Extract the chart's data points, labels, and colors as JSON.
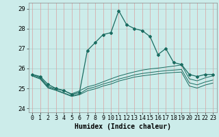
{
  "xlabel": "Humidex (Indice chaleur)",
  "background_color": "#ccecea",
  "grid_color_v": "#d9a0a0",
  "grid_color_h": "#aaccca",
  "line_color": "#1a6b60",
  "xlim": [
    -0.5,
    23.5
  ],
  "ylim": [
    23.8,
    29.3
  ],
  "yticks": [
    24,
    25,
    26,
    27,
    28,
    29
  ],
  "xticks": [
    0,
    1,
    2,
    3,
    4,
    5,
    6,
    7,
    8,
    9,
    10,
    11,
    12,
    13,
    14,
    15,
    16,
    17,
    18,
    19,
    20,
    21,
    22,
    23
  ],
  "series_main": [
    25.7,
    25.6,
    25.2,
    25.0,
    24.9,
    24.7,
    24.8,
    26.9,
    27.3,
    27.7,
    27.8,
    28.9,
    28.2,
    28.0,
    27.9,
    27.6,
    26.7,
    27.0,
    26.3,
    26.2,
    25.7,
    25.6,
    25.7,
    25.7
  ],
  "series_flat": [
    [
      25.7,
      25.55,
      25.1,
      24.98,
      24.88,
      24.73,
      24.88,
      25.08,
      25.18,
      25.33,
      25.48,
      25.62,
      25.73,
      25.83,
      25.92,
      25.98,
      26.02,
      26.07,
      26.12,
      26.18,
      25.48,
      25.38,
      25.53,
      25.63
    ],
    [
      25.65,
      25.5,
      25.05,
      24.93,
      24.78,
      24.63,
      24.73,
      24.98,
      25.08,
      25.22,
      25.33,
      25.47,
      25.57,
      25.68,
      25.75,
      25.8,
      25.85,
      25.89,
      25.92,
      25.95,
      25.28,
      25.18,
      25.32,
      25.42
    ],
    [
      25.62,
      25.47,
      25.02,
      24.9,
      24.75,
      24.6,
      24.68,
      24.88,
      24.98,
      25.12,
      25.22,
      25.37,
      25.47,
      25.57,
      25.63,
      25.68,
      25.73,
      25.77,
      25.8,
      25.82,
      25.12,
      25.02,
      25.17,
      25.27
    ]
  ],
  "xlabel_fontsize": 7,
  "tick_fontsize": 6
}
